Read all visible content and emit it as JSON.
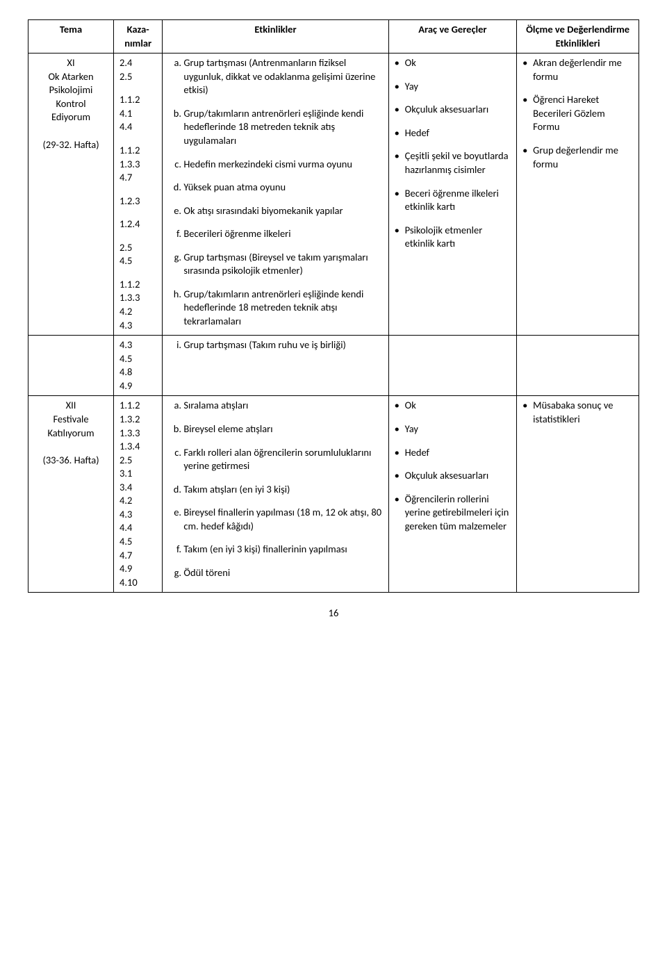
{
  "headers": {
    "tema": "Tema",
    "kazanimlar": "Kaza-\nnımlar",
    "etkinlikler": "Etkinlikler",
    "arac": "Araç ve Gereçler",
    "olcme": "Ölçme ve Değerlendirme Etkinlikleri"
  },
  "row1": {
    "tema_title": "XI",
    "tema_lines": [
      "Ok Atarken",
      "Psikolojimi",
      "Kontrol",
      "Ediyorum"
    ],
    "tema_week": "(29-32. Hafta)",
    "kaz_blocks": [
      [
        "2.4",
        "2.5"
      ],
      [
        "1.1.2",
        "4.1",
        "4.4"
      ],
      [
        "1.1.2",
        "1.3.3",
        "4.7"
      ],
      [
        "1.2.3"
      ],
      [
        "1.2.4"
      ],
      [
        "2.5",
        "4.5"
      ],
      [
        "1.1.2",
        "1.3.3",
        "4.2",
        "4.3"
      ]
    ],
    "etk_start": 1,
    "etk": [
      "Grup tartışması (Antrenmanların fiziksel uygunluk, dikkat ve odaklanma gelişimi üzerine etkisi)",
      "Grup/takımların antrenörleri eşliğinde kendi hedeflerinde 18 metreden teknik atış uygulamaları",
      "Hedefin merkezindeki cismi vurma oyunu",
      "Yüksek puan atma oyunu",
      "Ok atışı sırasındaki biyomekanik yapılar",
      "Becerileri öğrenme ilkeleri",
      "Grup tartışması (Bireysel ve takım yarışmaları sırasında psikolojik etmenler)",
      "Grup/takımların antrenörleri eşliğinde kendi hedeflerinde 18 metreden teknik atışı tekrarlamaları"
    ],
    "arac": [
      "Ok",
      "Yay",
      "Okçuluk aksesuarları",
      "Hedef",
      "Çeşitli şekil ve boyutlarda hazırlanmış cisimler",
      "Beceri öğrenme ilkeleri etkinlik kartı",
      "Psikolojik etmenler etkinlik kartı"
    ],
    "olcme": [
      "Akran değerlendir me formu",
      "Öğrenci Hareket Becerileri Gözlem Formu",
      "Grup değerlendir me formu"
    ]
  },
  "row2": {
    "kaz": [
      "4.3",
      "4.5",
      "4.8",
      "4.9"
    ],
    "etk_start": 9,
    "etk": [
      "Grup tartışması (Takım ruhu ve iş birliği)"
    ]
  },
  "row3": {
    "tema_title": "XII",
    "tema_lines": [
      "Festivale",
      "Katılıyorum"
    ],
    "tema_week": "(33-36. Hafta)",
    "kaz": [
      "1.1.2",
      "1.3.2",
      "1.3.3",
      "1.3.4",
      "2.5",
      "3.1",
      "3.4",
      "4.2",
      "4.3",
      "4.4",
      "4.5",
      "4.7",
      "4.9",
      "4.10"
    ],
    "etk_start": 1,
    "etk": [
      "Sıralama atışları",
      "Bireysel eleme atışları",
      "Farklı rolleri alan öğrencilerin sorumluluklarını yerine getirmesi",
      "Takım atışları (en iyi 3 kişi)",
      "Bireysel finallerin yapılması (18 m, 12 ok atışı, 80 cm. hedef kâğıdı)",
      "Takım (en iyi 3 kişi) finallerinin yapılması",
      "Ödül töreni"
    ],
    "arac": [
      "Ok",
      "Yay",
      "Hedef",
      "Okçuluk aksesuarları",
      "Öğrencilerin rollerini yerine getirebilmeleri için gereken tüm malzemeler"
    ],
    "olcme": [
      "Müsabaka sonuç ve istatistikleri"
    ]
  },
  "page_number": "16"
}
